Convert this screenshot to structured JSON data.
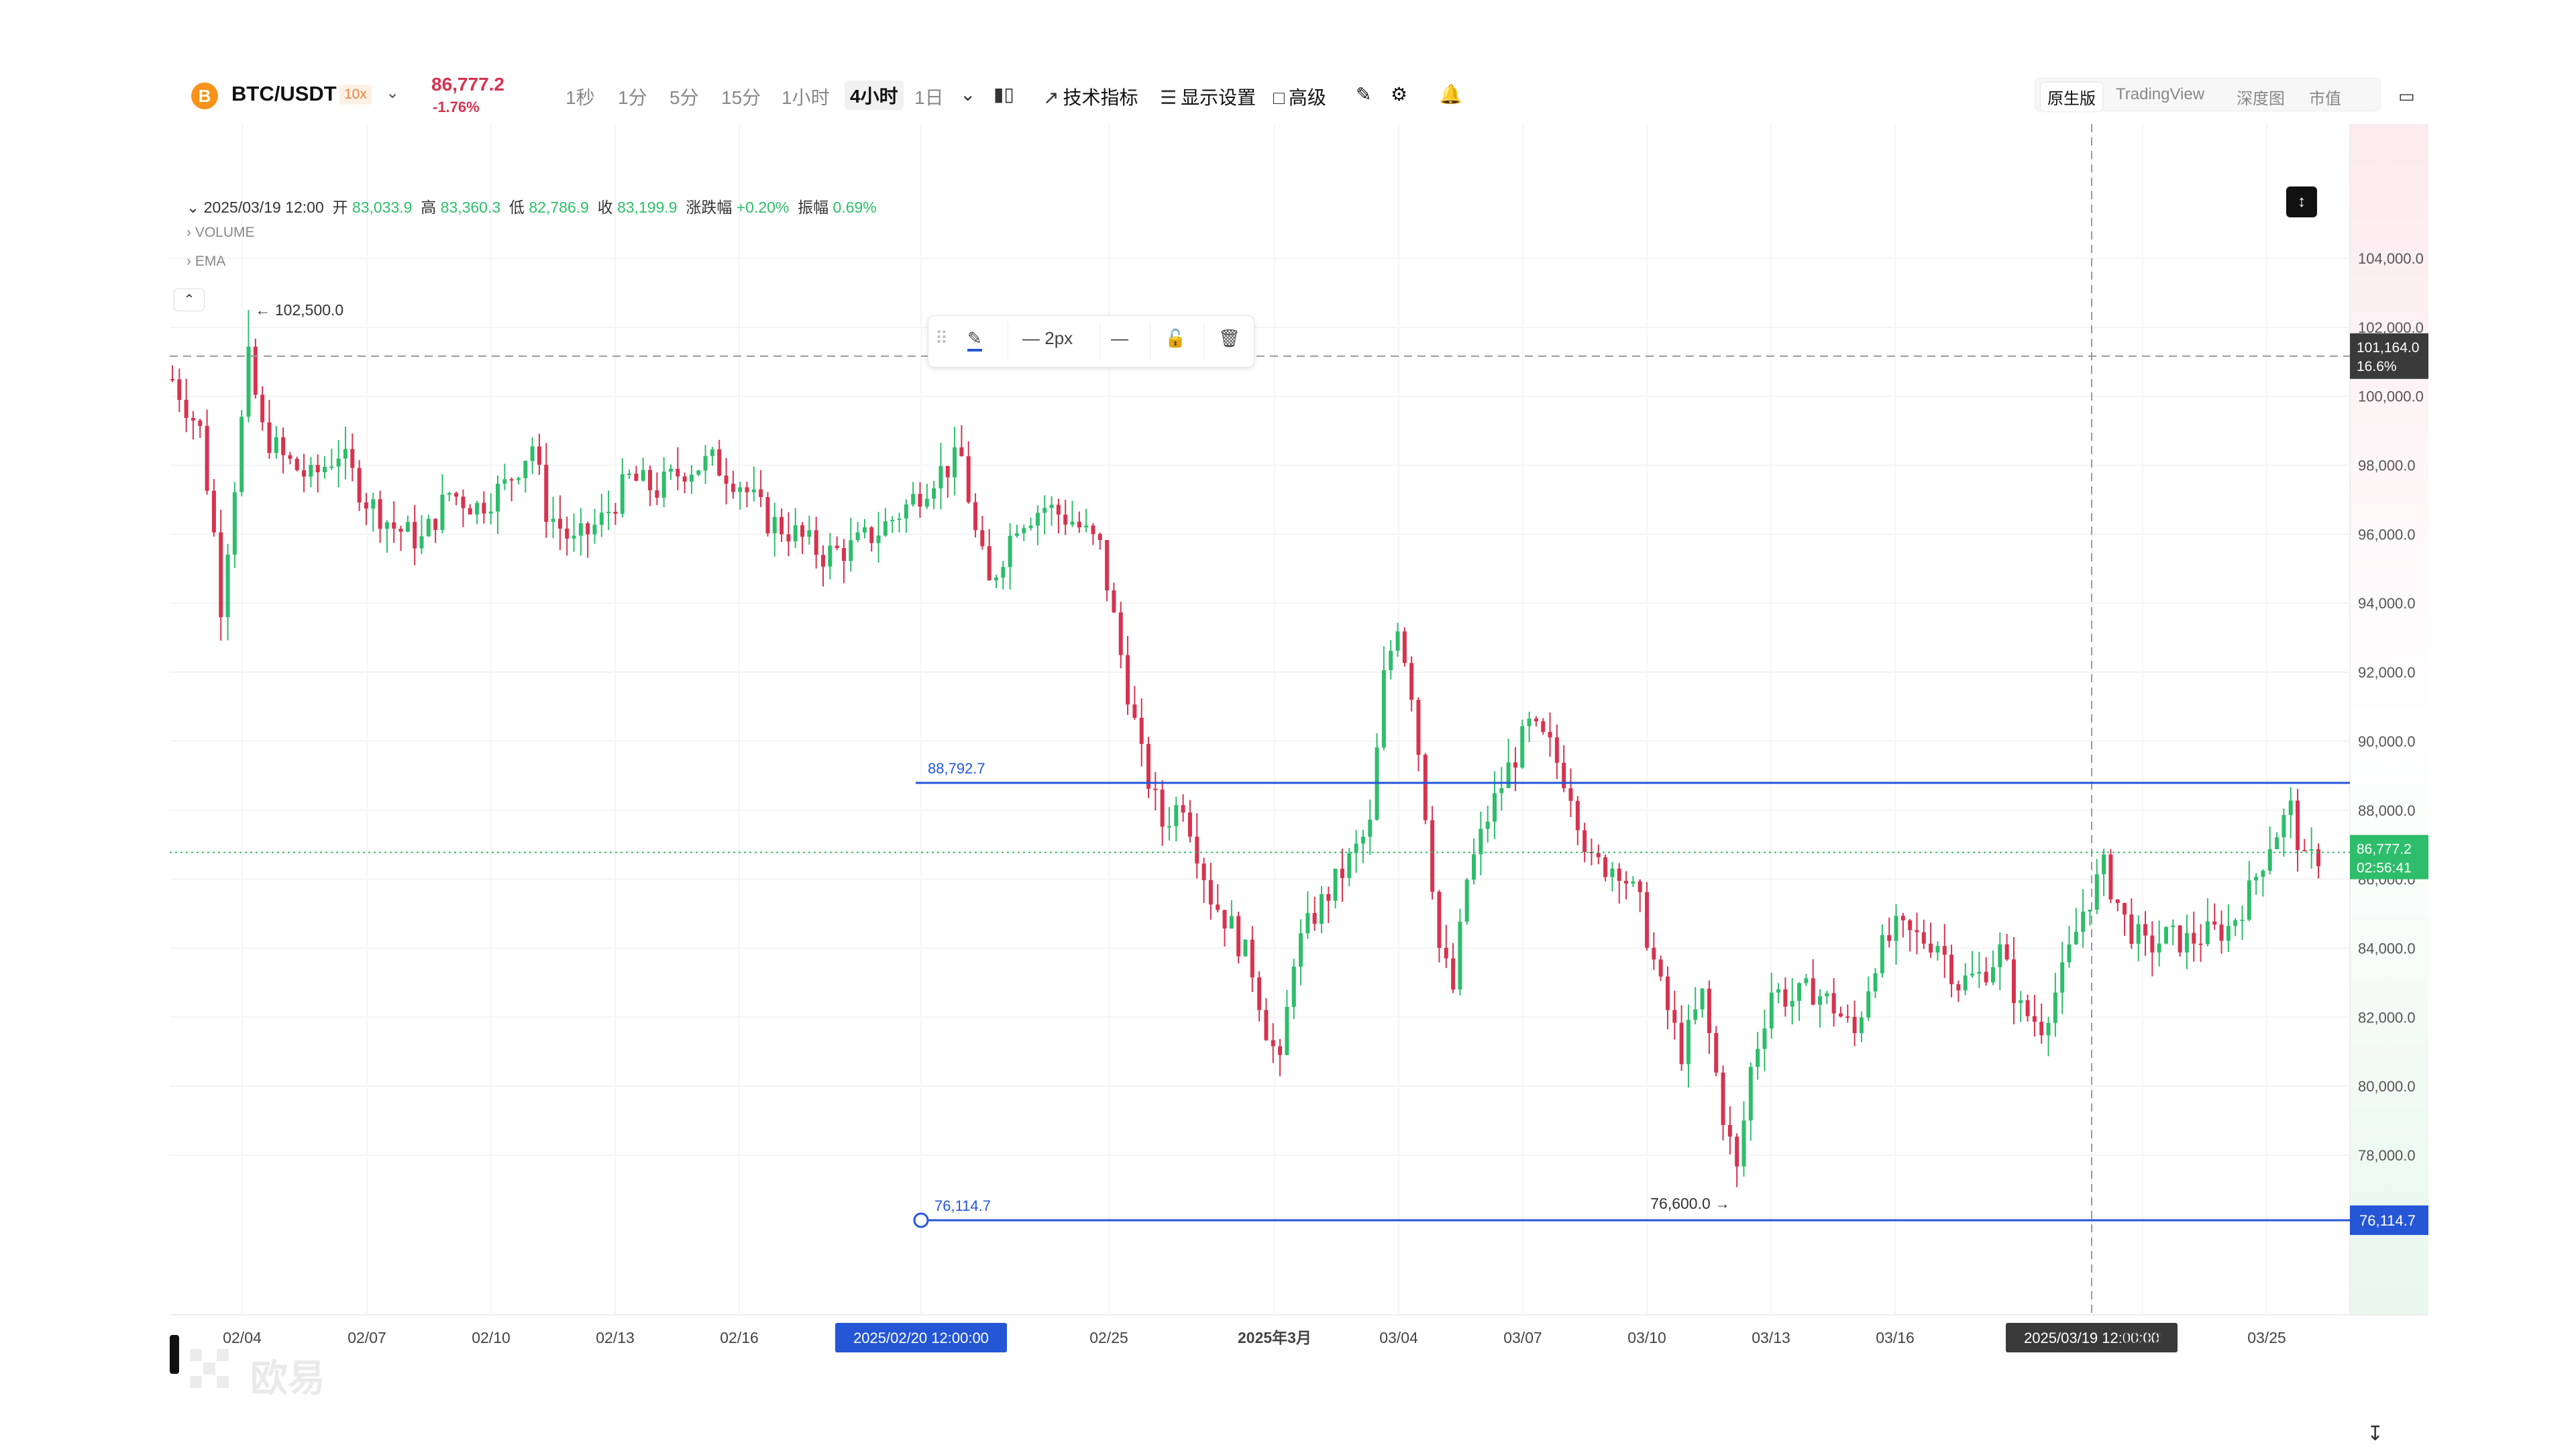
{
  "header": {
    "coin_symbol": "B",
    "pair": "BTC/USDT",
    "leverage": "10x",
    "last_price": "86,777.2",
    "change_pct": "-1.76%",
    "intervals": [
      "1秒",
      "1分",
      "5分",
      "15分",
      "1小时",
      "4小时",
      "1日"
    ],
    "active_interval": "4小时",
    "tools": {
      "indicators": "技术指标",
      "display": "显示设置",
      "advanced": "高级"
    },
    "view_tabs": [
      "原生版",
      "TradingView",
      "深度图",
      "市值"
    ],
    "active_view": "原生版"
  },
  "legend": {
    "time": "2025/03/19 12:00",
    "open_label": "开",
    "open": "83,033.9",
    "high_label": "高",
    "high": "83,360.3",
    "low_label": "低",
    "low": "82,786.9",
    "close_label": "收",
    "close": "83,199.9",
    "chg_label": "涨跌幅",
    "chg": "+0.20%",
    "amp_label": "振幅",
    "amp": "0.69%",
    "indicators": [
      "VOLUME",
      "EMA"
    ]
  },
  "drawing_toolbar": {
    "width_label": "2px"
  },
  "watermark": "欧易",
  "colors": {
    "up": "#2ebd6b",
    "down": "#d6334f",
    "hline": "#2456d6",
    "axis_tag_dark": "#3a3a3a",
    "price_tag": "#2ebd6b"
  },
  "chart_data": {
    "type": "candlestick",
    "title": "",
    "ylim": [
      74000,
      105500
    ],
    "y_ticks": [
      "104,000.0",
      "102,000.0",
      "100,000.0",
      "98,000.0",
      "96,000.0",
      "94,000.0",
      "92,000.0",
      "90,000.0",
      "88,000.0",
      "86,000.0",
      "84,000.0",
      "82,000.0",
      "80,000.0",
      "78,000.0"
    ],
    "x_ticks": [
      "02/04",
      "02/07",
      "02/10",
      "02/13",
      "02/16",
      "2025/02/20 12:00:00",
      "02/25",
      "2025年3月",
      "03/04",
      "03/07",
      "03/10",
      "03/13",
      "03/16",
      "2025/03/19 12:00:00",
      "03/22",
      "03/25"
    ],
    "trend_path_approx": [
      [
        0,
        100500
      ],
      [
        4,
        99000
      ],
      [
        6,
        96000
      ],
      [
        7,
        94000
      ],
      [
        9,
        97500
      ],
      [
        11,
        101000
      ],
      [
        13,
        99000
      ],
      [
        16,
        98200
      ],
      [
        20,
        97600
      ],
      [
        24,
        98400
      ],
      [
        28,
        97000
      ],
      [
        32,
        96200
      ],
      [
        36,
        95800
      ],
      [
        40,
        97200
      ],
      [
        44,
        96800
      ],
      [
        48,
        97400
      ],
      [
        52,
        98600
      ],
      [
        54,
        96700
      ],
      [
        58,
        95700
      ],
      [
        62,
        96400
      ],
      [
        66,
        97600
      ],
      [
        70,
        97300
      ],
      [
        74,
        97900
      ],
      [
        78,
        98100
      ],
      [
        82,
        97500
      ],
      [
        86,
        96400
      ],
      [
        90,
        96000
      ],
      [
        94,
        95400
      ],
      [
        98,
        95600
      ],
      [
        102,
        96100
      ],
      [
        106,
        96800
      ],
      [
        110,
        97700
      ],
      [
        114,
        98200
      ],
      [
        116,
        96000
      ],
      [
        118,
        94500
      ],
      [
        122,
        96400
      ],
      [
        126,
        96800
      ],
      [
        130,
        96400
      ],
      [
        134,
        95600
      ],
      [
        137,
        92500
      ],
      [
        140,
        89500
      ],
      [
        143,
        87600
      ],
      [
        146,
        88300
      ],
      [
        150,
        85500
      ],
      [
        153,
        84600
      ],
      [
        156,
        83400
      ],
      [
        158,
        81700
      ],
      [
        160,
        80500
      ],
      [
        162,
        83800
      ],
      [
        165,
        85000
      ],
      [
        169,
        86200
      ],
      [
        173,
        87500
      ],
      [
        175,
        91800
      ],
      [
        177,
        93500
      ],
      [
        179,
        91500
      ],
      [
        181,
        88000
      ],
      [
        183,
        84000
      ],
      [
        185,
        82800
      ],
      [
        187,
        86000
      ],
      [
        190,
        87800
      ],
      [
        193,
        89200
      ],
      [
        196,
        90400
      ],
      [
        199,
        89800
      ],
      [
        202,
        88600
      ],
      [
        205,
        86400
      ],
      [
        209,
        86400
      ],
      [
        212,
        85200
      ],
      [
        215,
        82800
      ],
      [
        218,
        81000
      ],
      [
        221,
        82600
      ],
      [
        224,
        79200
      ],
      [
        226,
        77500
      ],
      [
        228,
        80500
      ],
      [
        231,
        82800
      ],
      [
        234,
        82500
      ],
      [
        237,
        82800
      ],
      [
        240,
        82300
      ],
      [
        243,
        81500
      ],
      [
        246,
        83700
      ],
      [
        249,
        84500
      ],
      [
        252,
        84300
      ],
      [
        255,
        84200
      ],
      [
        258,
        83000
      ],
      [
        261,
        83200
      ],
      [
        264,
        83900
      ],
      [
        267,
        82200
      ],
      [
        270,
        81800
      ],
      [
        273,
        83200
      ],
      [
        276,
        85100
      ],
      [
        279,
        86300
      ],
      [
        282,
        84800
      ],
      [
        285,
        84000
      ],
      [
        288,
        84300
      ],
      [
        291,
        84200
      ],
      [
        294,
        84400
      ],
      [
        297,
        84600
      ],
      [
        300,
        85600
      ],
      [
        303,
        87100
      ],
      [
        306,
        88000
      ],
      [
        308,
        86400
      ],
      [
        310,
        86700
      ]
    ],
    "annotations": {
      "max_label": "102,500.0",
      "min_label": "76,600.0",
      "crosshair_price": "101,164.0",
      "crosshair_pct": "16.6%",
      "current_price": "86,777.2",
      "countdown": "02:56:41",
      "hline1_price": "88,792.7",
      "hline2_price": "76,114.7"
    },
    "hlines": [
      88792.7,
      76114.7
    ],
    "current": 86777.2,
    "crosshair_y": 101164,
    "max": 102500,
    "min": 76600
  }
}
